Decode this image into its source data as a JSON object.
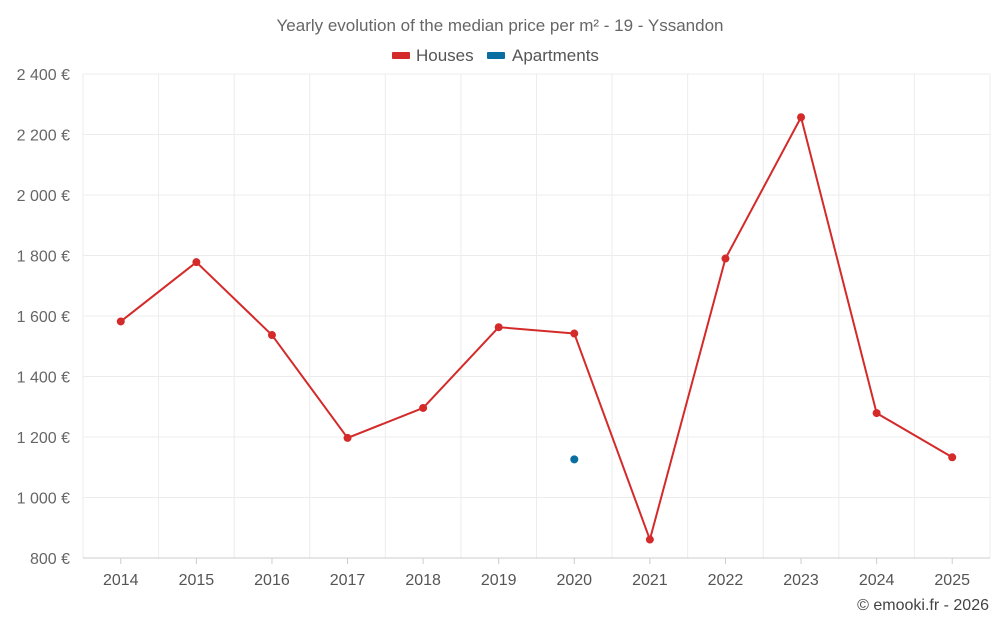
{
  "chart_data": {
    "type": "line",
    "title": "Yearly evolution of the median price per m² - 19 - Yssandon",
    "x": [
      "2014",
      "2015",
      "2016",
      "2017",
      "2018",
      "2019",
      "2020",
      "2021",
      "2022",
      "2023",
      "2024",
      "2025"
    ],
    "series": [
      {
        "name": "Houses",
        "color": "#d42a2a",
        "values": [
          1582,
          1778,
          1537,
          1197,
          1296,
          1563,
          1542,
          861,
          1790,
          2257,
          1279,
          1133
        ]
      },
      {
        "name": "Apartments",
        "color": "#0b6ea0",
        "values": [
          null,
          null,
          null,
          null,
          null,
          null,
          1126,
          null,
          null,
          null,
          null,
          null
        ]
      }
    ],
    "y_ticks": [
      "800 €",
      "1 000 €",
      "1 200 €",
      "1 400 €",
      "1 600 €",
      "1 800 €",
      "2 000 €",
      "2 200 €",
      "2 400 €"
    ],
    "y_tick_values": [
      800,
      1000,
      1200,
      1400,
      1600,
      1800,
      2000,
      2200,
      2400
    ],
    "ylim": [
      800,
      2400
    ],
    "grid": true,
    "legend_position": "top-center",
    "xlabel": "",
    "ylabel": ""
  },
  "credit": "© emooki.fr - 2026"
}
